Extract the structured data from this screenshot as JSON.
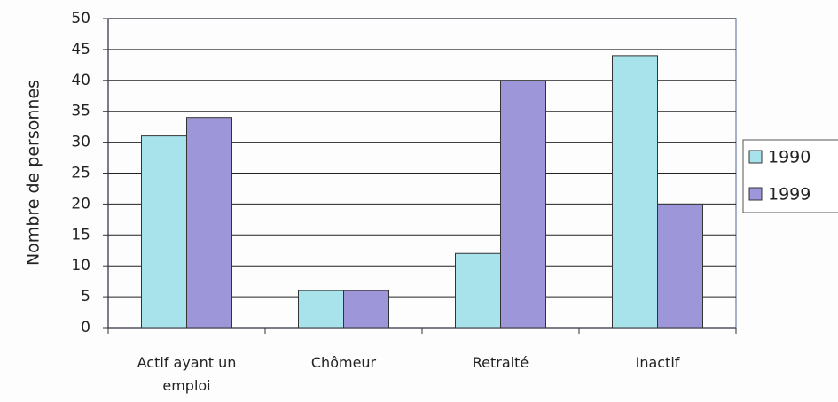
{
  "chart_data": {
    "type": "bar",
    "y_label": "Nombre de personnes",
    "categories": [
      "Actif ayant un emploi",
      "Chômeur",
      "Retraité",
      "Inactif"
    ],
    "series": [
      {
        "name": "1990",
        "color": "#a8e3ec",
        "values": [
          31,
          6,
          12,
          44
        ]
      },
      {
        "name": "1999",
        "color": "#9d96d9",
        "values": [
          34,
          6,
          40,
          20
        ]
      }
    ],
    "ylim": [
      0,
      50
    ],
    "yticks": [
      0,
      5,
      10,
      15,
      20,
      25,
      30,
      35,
      40,
      45,
      50
    ],
    "grid": true,
    "legend": "right"
  }
}
